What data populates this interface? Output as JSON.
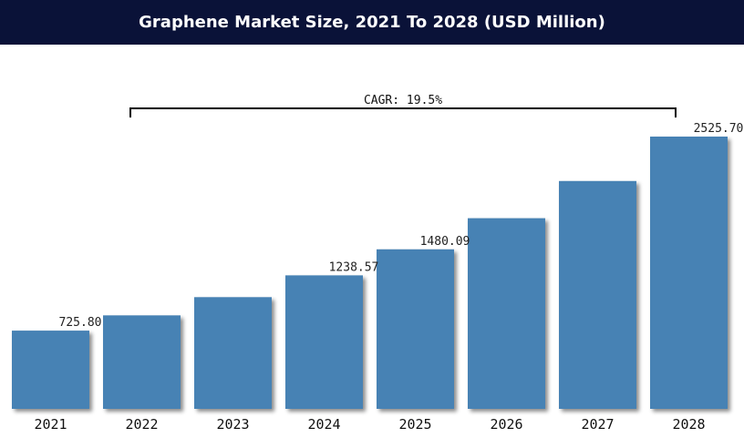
{
  "colors": {
    "title_bg": "#0a1238",
    "title_text": "#ffffff",
    "bar": "#4682b4",
    "bracket": "#000000"
  },
  "chart_data": {
    "type": "bar",
    "title": "Graphene Market Size, 2021 To 2028 (USD Million)",
    "categories": [
      "2021",
      "2022",
      "2023",
      "2024",
      "2025",
      "2026",
      "2027",
      "2028"
    ],
    "values": [
      725.8,
      867.3,
      1036.4,
      1238.57,
      1480.09,
      1768.7,
      2113.6,
      2525.7
    ],
    "data_labels": [
      "725.80",
      "",
      "",
      "1238.57",
      "1480.09",
      "",
      "",
      "2525.70"
    ],
    "ylim": [
      0,
      2700
    ],
    "annotation": {
      "text": "CAGR: 19.5%",
      "from_category": "2022",
      "to_category": "2028"
    },
    "grid": false,
    "legend": "none"
  }
}
